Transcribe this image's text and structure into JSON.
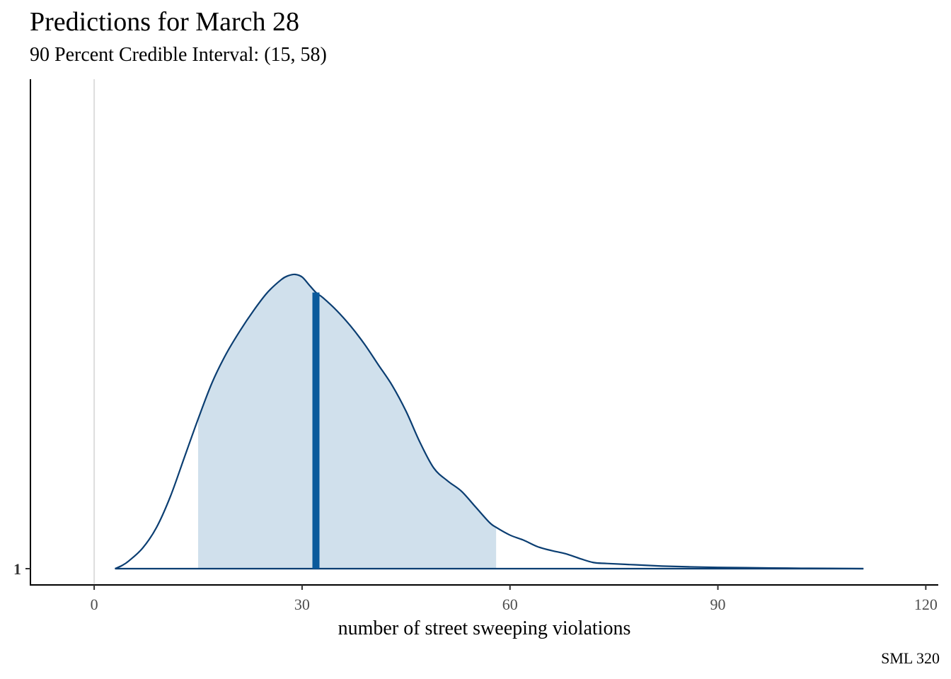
{
  "chart_data": {
    "type": "area",
    "title": "Predictions for March 28",
    "subtitle": "90 Percent Credible Interval: (15, 58)",
    "xlabel": "number of street sweeping violations",
    "ylabel": "",
    "caption": "SML 320",
    "xlim": [
      -9.2,
      121.8
    ],
    "x_ticks": [
      0,
      30,
      60,
      90,
      120
    ],
    "y_categories": [
      "1"
    ],
    "credible_interval": [
      15,
      58
    ],
    "point_estimate": 32,
    "zero_reference_line": 0,
    "density": {
      "x": [
        3,
        4,
        5,
        7,
        9,
        11,
        13,
        15,
        17,
        19,
        21,
        23,
        25,
        27,
        28,
        29,
        30,
        31,
        32,
        33,
        35,
        37,
        39,
        41,
        43,
        45,
        47,
        49,
        51,
        53,
        55,
        57,
        58,
        60,
        62,
        64,
        66,
        68,
        70,
        72,
        74,
        78,
        82,
        86,
        90,
        94,
        100,
        106,
        111
      ],
      "y": [
        0.0,
        0.012,
        0.03,
        0.08,
        0.16,
        0.28,
        0.43,
        0.58,
        0.72,
        0.83,
        0.92,
        1.0,
        1.07,
        1.12,
        1.135,
        1.14,
        1.13,
        1.1,
        1.07,
        1.05,
        1.0,
        0.94,
        0.87,
        0.79,
        0.71,
        0.61,
        0.49,
        0.39,
        0.34,
        0.3,
        0.24,
        0.18,
        0.16,
        0.13,
        0.11,
        0.085,
        0.07,
        0.058,
        0.04,
        0.024,
        0.02,
        0.015,
        0.01,
        0.007,
        0.005,
        0.004,
        0.002,
        0.001,
        0.0
      ]
    },
    "colors": {
      "outline": "#0b3e72",
      "interval_fill": "#d0e0ec",
      "point_line": "#0a5a9c",
      "zero_line": "#dcdcdc",
      "axis": "#000000"
    }
  }
}
